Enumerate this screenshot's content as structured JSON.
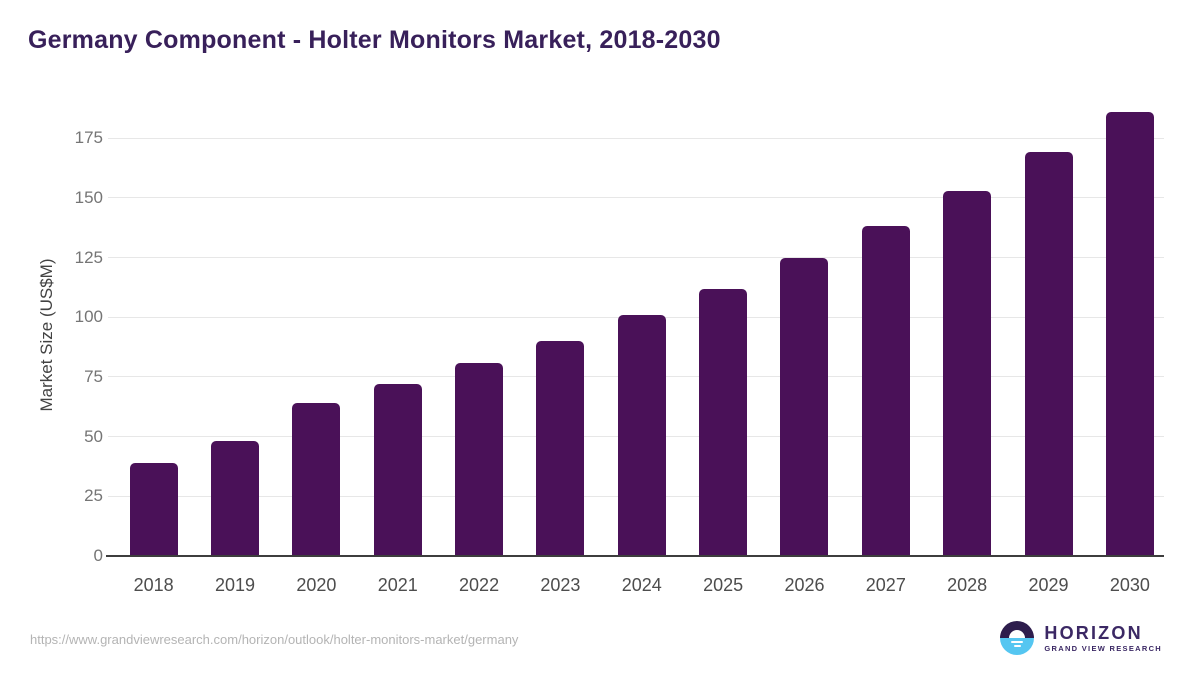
{
  "page": {
    "title": "Germany Component - Holter Monitors Market, 2018-2030"
  },
  "chart_data": {
    "type": "bar",
    "title": "Germany Component - Holter Monitors Market, 2018-2030",
    "categories": [
      "2018",
      "2019",
      "2020",
      "2021",
      "2022",
      "2023",
      "2024",
      "2025",
      "2026",
      "2027",
      "2028",
      "2029",
      "2030"
    ],
    "values": [
      39,
      48,
      64,
      72,
      81,
      90,
      101,
      112,
      125,
      138,
      153,
      169,
      186
    ],
    "xlabel": "",
    "ylabel": "Market Size (US$M)",
    "ylim": [
      0,
      188
    ],
    "yticks": [
      0,
      25,
      50,
      75,
      100,
      125,
      150,
      175
    ],
    "grid": true,
    "legend": false,
    "bar_color": "#4a1158"
  },
  "footer": {
    "source_url": "https://www.grandviewresearch.com/horizon/outlook/holter-monitors-market/germany",
    "logo": {
      "name": "HORIZON",
      "subtitle": "GRAND VIEW RESEARCH"
    }
  },
  "colors": {
    "title": "#38205a",
    "bar": "#4a1158",
    "grid": "#e7e7e7",
    "axis_line": "#3d3d3d",
    "tick_label": "#757575",
    "x_label": "#4d4d4d",
    "axis_title": "#424242",
    "url_text": "#b4b4b4",
    "logo_purple": "#3b2864",
    "logo_blue": "#55c6f1",
    "logo_dark": "#2e1d4d"
  }
}
